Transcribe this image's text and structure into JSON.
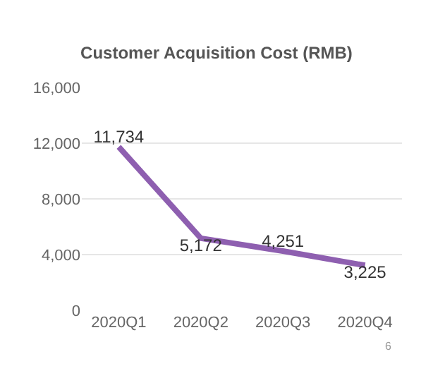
{
  "chart_data": {
    "type": "line",
    "title": "Customer Acquisition Cost (RMB)",
    "categories": [
      "2020Q1",
      "2020Q2",
      "2020Q3",
      "2020Q4"
    ],
    "series": [
      {
        "color": "#8e5fb0",
        "values": [
          11734,
          5172,
          4251,
          3225
        ],
        "value_labels": [
          "11,734",
          "5,172",
          "4,251",
          "3,225"
        ]
      }
    ],
    "ylim": [
      0,
      16000
    ],
    "yticks": [
      {
        "value": 0,
        "label": "0"
      },
      {
        "value": 4000,
        "label": "4,000"
      },
      {
        "value": 8000,
        "label": "8,000"
      },
      {
        "value": 12000,
        "label": "12,000"
      },
      {
        "value": 16000,
        "label": "16,000"
      }
    ],
    "grid": "y",
    "legend": false,
    "marker": "none",
    "line_style": "solid",
    "annotations": [
      "6"
    ]
  }
}
